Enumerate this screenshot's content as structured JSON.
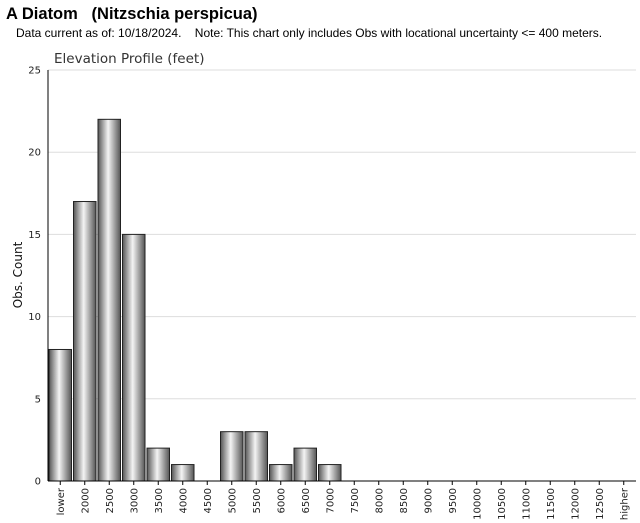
{
  "header": {
    "title": "A Diatom   (Nitzschia perspicua)",
    "note": "Data current as of: 10/18/2024.    Note: This chart only includes Obs with locational uncertainty <= 400 meters."
  },
  "chart_data": {
    "type": "bar",
    "title": "Elevation Profile (feet)",
    "xlabel": "",
    "ylabel": "Obs. Count",
    "ylim": [
      0,
      25
    ],
    "yticks": [
      0,
      5,
      10,
      15,
      20,
      25
    ],
    "grid": true,
    "categories": [
      "lower",
      "2000",
      "2500",
      "3000",
      "3500",
      "4000",
      "4500",
      "5000",
      "5500",
      "6000",
      "6500",
      "7000",
      "7500",
      "8000",
      "8500",
      "9000",
      "9500",
      "10000",
      "10500",
      "11000",
      "11500",
      "12000",
      "12500",
      "higher"
    ],
    "values": [
      8,
      17,
      22,
      15,
      2,
      1,
      0,
      3,
      3,
      1,
      2,
      1,
      0,
      0,
      0,
      0,
      0,
      0,
      0,
      0,
      0,
      0,
      0,
      0
    ],
    "colors": {
      "bar_dark": "#555555",
      "bar_light": "#f4f4f4",
      "bar_stroke": "#222222",
      "grid": "#dddddd",
      "axis": "#000000"
    }
  }
}
